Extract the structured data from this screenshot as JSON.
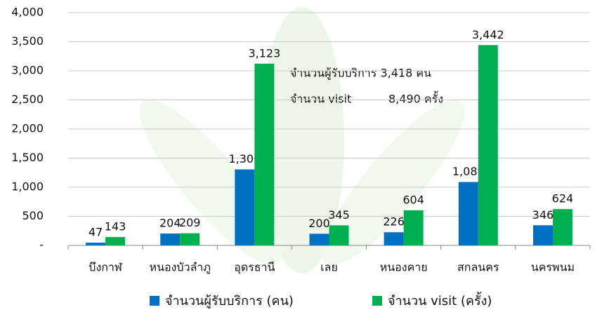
{
  "chart_data": {
    "type": "bar",
    "categories": [
      "บึงกาฬ",
      "หนองบัวลำภู",
      "อุดรธานี",
      "เลย",
      "หนองคาย",
      "สกลนคร",
      "นครพนม"
    ],
    "series": [
      {
        "name": "จำนวนผู้รับบริการ (คน)",
        "color": "#0070c0",
        "values": [
          47,
          204,
          1306,
          200,
          226,
          1089,
          346
        ],
        "value_labels": [
          "47",
          "204",
          "1,306",
          "200",
          "226",
          "1,089",
          "346"
        ]
      },
      {
        "name": "จำนวน visit (ครั้ง)",
        "color": "#00b050",
        "values": [
          143,
          209,
          3123,
          345,
          604,
          3442,
          624
        ],
        "value_labels": [
          "143",
          "209",
          "3,123",
          "345",
          "604",
          "3,442",
          "624"
        ]
      }
    ],
    "annotations": [
      "จำนวนผู้รับบริการ 3,418 คน",
      "จำนวน visit",
      "8,490 ครั้ง"
    ],
    "ylim": [
      0,
      4000
    ],
    "yticks": [
      {
        "value": 0,
        "label": "-"
      },
      500,
      {
        "value": 1000,
        "label": "1,000"
      },
      {
        "value": 1500,
        "label": "1,500"
      },
      {
        "value": 2000,
        "label": "2,000"
      },
      {
        "value": 2500,
        "label": "2,500"
      },
      {
        "value": 3000,
        "label": "3,000"
      },
      {
        "value": 3500,
        "label": "3,500"
      },
      {
        "value": 4000,
        "label": "4,000"
      }
    ],
    "grid": true
  }
}
